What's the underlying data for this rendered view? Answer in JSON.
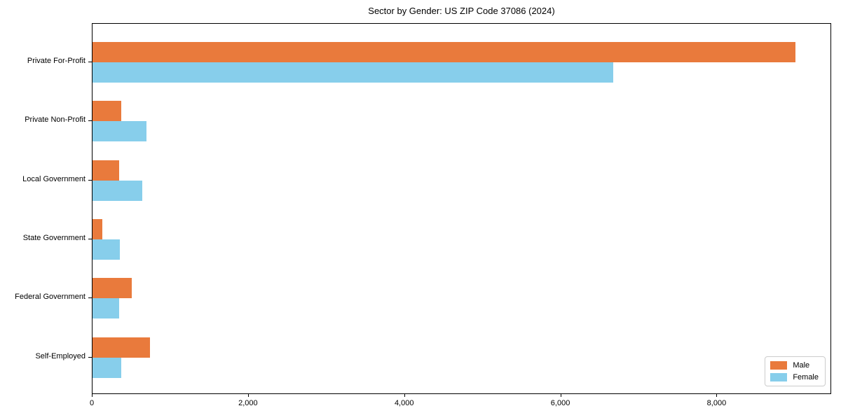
{
  "chart_data": {
    "type": "bar",
    "orientation": "horizontal",
    "title": "Sector by Gender: US ZIP Code 37086 (2024)",
    "categories": [
      "Private For-Profit",
      "Private Non-Profit",
      "Local Government",
      "State Government",
      "Federal Government",
      "Self-Employed"
    ],
    "series": [
      {
        "name": "Male",
        "color": "#E97A3C",
        "values": [
          9000,
          370,
          340,
          130,
          500,
          740
        ]
      },
      {
        "name": "Female",
        "color": "#87CEEB",
        "values": [
          6670,
          690,
          640,
          350,
          340,
          370
        ]
      }
    ],
    "xlabel": "",
    "ylabel": "",
    "xlim": [
      0,
      9450
    ],
    "xticks": [
      {
        "value": 0,
        "label": "0"
      },
      {
        "value": 2000,
        "label": "2,000"
      },
      {
        "value": 4000,
        "label": "4,000"
      },
      {
        "value": 6000,
        "label": "6,000"
      },
      {
        "value": 8000,
        "label": "8,000"
      }
    ],
    "grid": false,
    "legend": {
      "position": "lower right",
      "entries": [
        "Male",
        "Female"
      ]
    }
  }
}
